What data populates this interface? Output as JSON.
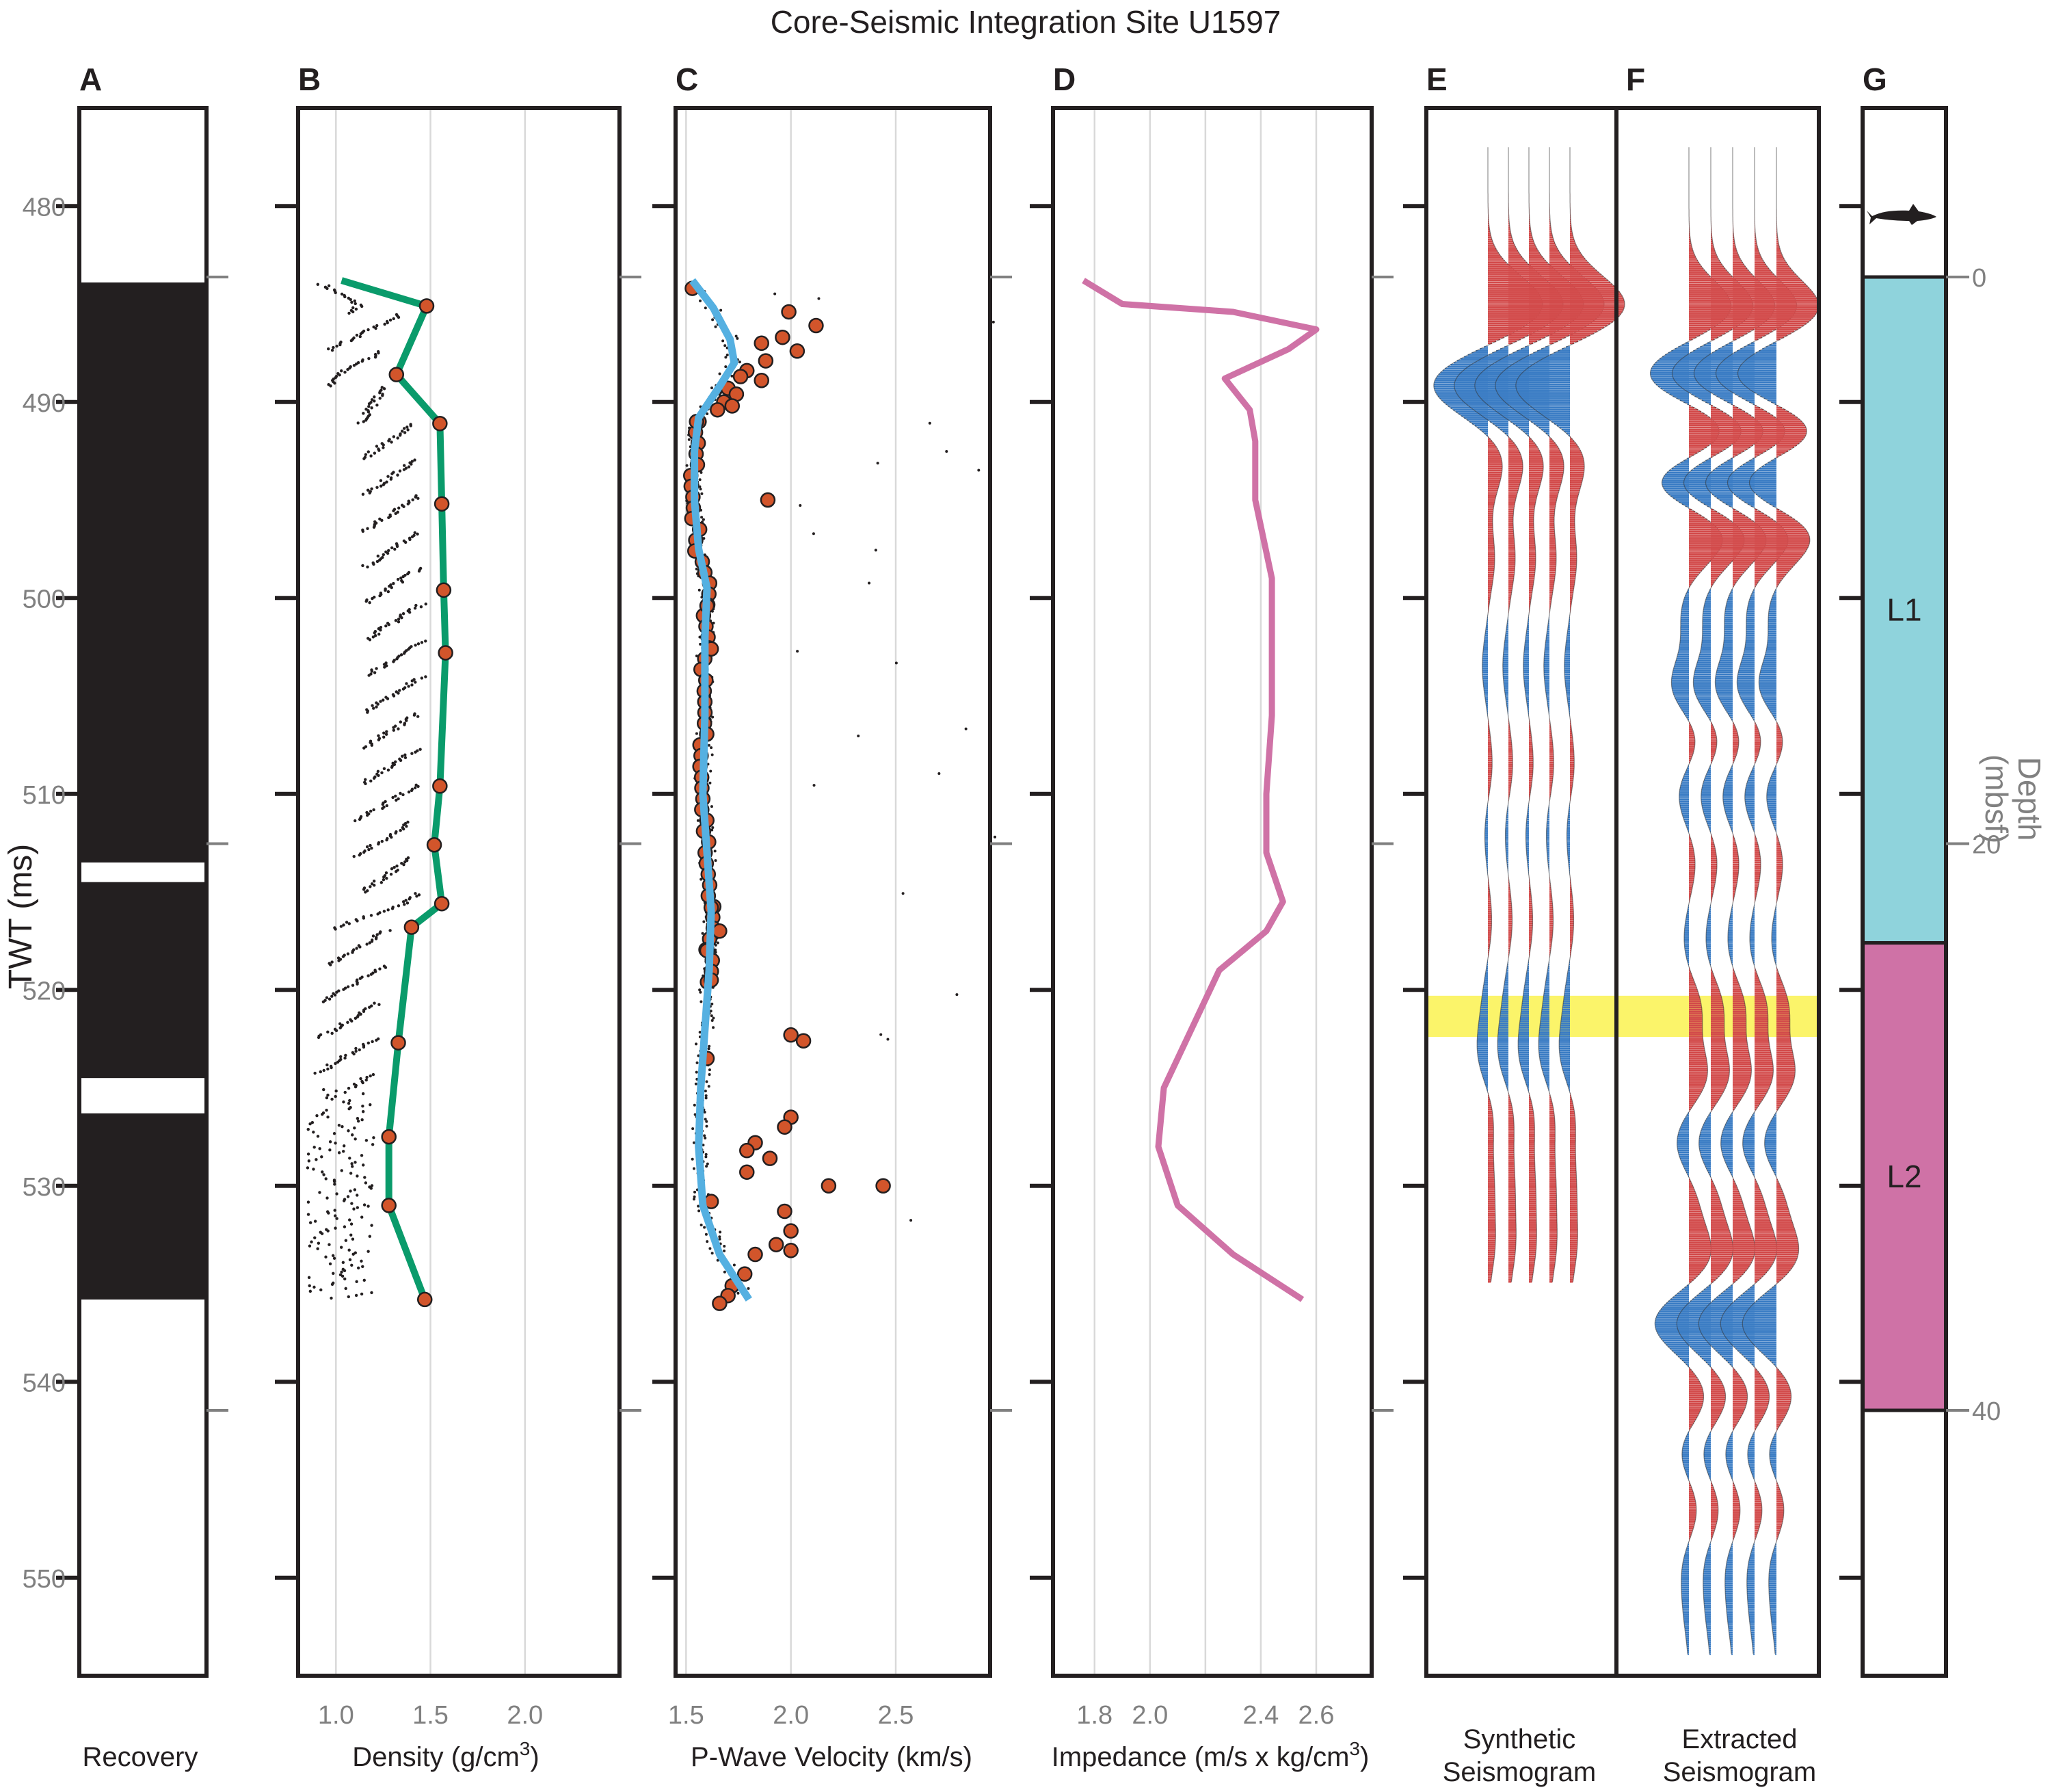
{
  "title": "Core-Seismic Integration Site U1597",
  "twt_axis": {
    "label": "TWT (ms)",
    "ticks": [
      "480",
      "490",
      "500",
      "510",
      "520",
      "530",
      "540",
      "550"
    ],
    "range": [
      475,
      555
    ]
  },
  "depth_axis": {
    "label_line1": "Depth",
    "label_line2": "(mbsf)",
    "ticks": [
      "0",
      "20",
      "40"
    ]
  },
  "panels": {
    "A": {
      "letter": "A",
      "xlabel": "Recovery"
    },
    "B": {
      "letter": "B",
      "xlabel": "Density (g/cm",
      "xlabel_sup": "3",
      "xlabel_end": ")",
      "ticks": [
        "1.0",
        "1.5",
        "2.0"
      ]
    },
    "C": {
      "letter": "C",
      "xlabel": "P-Wave Velocity (km/s)",
      "ticks": [
        "1.5",
        "2.0",
        "2.5"
      ]
    },
    "D": {
      "letter": "D",
      "xlabel": "Impedance (m/s x kg/cm",
      "xlabel_sup": "3",
      "xlabel_end": ")",
      "ticks": [
        "1.8",
        "2.0",
        "2.4",
        "2.6"
      ]
    },
    "E": {
      "letter": "E",
      "xlabel_line1": "Synthetic",
      "xlabel_line2": "Seismogram"
    },
    "F": {
      "letter": "F",
      "xlabel_line1": "Extracted",
      "xlabel_line2": "Seismogram"
    },
    "G": {
      "letter": "G",
      "units": [
        "L1",
        "L2"
      ]
    }
  },
  "colors": {
    "density_line": "#0a9b6b",
    "velocity_line": "#55b0e1",
    "impedance_line": "#cf72a6",
    "points": "#d2552b",
    "trace_pos": "#d24a4a",
    "trace_neg": "#3a7cc4",
    "highlight": "#fbf46a",
    "unit_L1": "#8fd3dc",
    "unit_L2": "#cf72a6",
    "core": "#231f20"
  },
  "chart_data": [
    {
      "type": "recovery",
      "title": "Recovery",
      "recovered_twt": [
        [
          483.9,
          513.5
        ],
        [
          514.5,
          524.5
        ],
        [
          526.3,
          535.8
        ]
      ]
    },
    {
      "type": "line",
      "title": "Density",
      "xlabel": "Density (g/cm3)",
      "xlim": [
        0.8,
        2.5
      ],
      "series": [
        {
          "points": [
            [
              1.03,
              483.8
            ],
            [
              1.48,
              485.1
            ],
            [
              1.32,
              488.6
            ],
            [
              1.55,
              491.1
            ],
            [
              1.56,
              495.2
            ],
            [
              1.57,
              499.6
            ],
            [
              1.58,
              502.8
            ],
            [
              1.55,
              509.6
            ],
            [
              1.52,
              512.6
            ],
            [
              1.56,
              515.6
            ],
            [
              1.4,
              516.8
            ],
            [
              1.33,
              522.7
            ],
            [
              1.28,
              527.5
            ],
            [
              1.28,
              531.0
            ],
            [
              1.47,
              535.8
            ]
          ]
        }
      ],
      "markers_x": [
        1.48,
        1.32,
        1.55,
        1.56,
        1.57,
        1.58,
        1.55,
        1.52,
        1.56,
        1.4,
        1.33,
        1.28,
        1.28,
        1.47
      ],
      "markers_twt": [
        485.1,
        488.6,
        491.1,
        495.2,
        499.6,
        502.8,
        509.6,
        512.6,
        515.6,
        516.8,
        522.7,
        527.5,
        531.0,
        535.8
      ]
    },
    {
      "type": "line",
      "title": "P-Wave Velocity",
      "xlabel": "P-Wave Velocity (km/s)",
      "xlim": [
        1.45,
        2.95
      ],
      "series": [
        {
          "points": [
            [
              1.53,
              483.8
            ],
            [
              1.63,
              485.2
            ],
            [
              1.71,
              486.8
            ],
            [
              1.73,
              488.0
            ],
            [
              1.66,
              489.2
            ],
            [
              1.56,
              490.8
            ],
            [
              1.54,
              492.5
            ],
            [
              1.54,
              495.0
            ],
            [
              1.56,
              497.5
            ],
            [
              1.6,
              499.5
            ],
            [
              1.59,
              502.0
            ],
            [
              1.59,
              506.0
            ],
            [
              1.58,
              510.0
            ],
            [
              1.6,
              513.0
            ],
            [
              1.62,
              516.0
            ],
            [
              1.61,
              519.0
            ],
            [
              1.59,
              522.0
            ],
            [
              1.57,
              525.0
            ],
            [
              1.56,
              528.0
            ],
            [
              1.58,
              531.0
            ],
            [
              1.66,
              533.5
            ],
            [
              1.8,
              535.8
            ]
          ]
        }
      ],
      "markers": [
        [
          1.53,
          484.2
        ],
        [
          1.99,
          485.4
        ],
        [
          2.12,
          486.1
        ],
        [
          1.96,
          486.7
        ],
        [
          2.03,
          487.4
        ],
        [
          1.86,
          487.0
        ],
        [
          1.88,
          487.9
        ],
        [
          1.79,
          488.4
        ],
        [
          1.76,
          488.7
        ],
        [
          1.7,
          489.3
        ],
        [
          1.74,
          489.6
        ],
        [
          1.86,
          488.9
        ],
        [
          1.68,
          490.0
        ],
        [
          1.72,
          490.2
        ],
        [
          1.65,
          490.4
        ],
        [
          1.55,
          491.0
        ],
        [
          1.89,
          495.0
        ],
        [
          1.6,
          500.4
        ],
        [
          1.62,
          502.6
        ],
        [
          1.62,
          515.8
        ],
        [
          1.66,
          517.0
        ],
        [
          1.6,
          518.0
        ],
        [
          1.62,
          519.5
        ],
        [
          2.0,
          522.3
        ],
        [
          2.06,
          522.6
        ],
        [
          1.6,
          523.5
        ],
        [
          2.0,
          526.5
        ],
        [
          1.97,
          527.0
        ],
        [
          1.83,
          527.8
        ],
        [
          1.79,
          528.2
        ],
        [
          1.9,
          528.6
        ],
        [
          1.79,
          529.3
        ],
        [
          2.18,
          530.0
        ],
        [
          2.44,
          530.0
        ],
        [
          1.62,
          530.8
        ],
        [
          1.97,
          531.3
        ],
        [
          2.0,
          532.3
        ],
        [
          1.93,
          533.0
        ],
        [
          1.83,
          533.5
        ],
        [
          2.0,
          533.3
        ],
        [
          1.78,
          534.5
        ],
        [
          1.72,
          535.1
        ],
        [
          1.7,
          535.6
        ],
        [
          1.66,
          536.0
        ]
      ]
    },
    {
      "type": "line",
      "title": "Impedance",
      "xlabel": "Impedance (m/s x kg/cm3)",
      "xlim": [
        1.65,
        2.8
      ],
      "series": [
        {
          "points": [
            [
              1.76,
              483.8
            ],
            [
              1.9,
              485.0
            ],
            [
              2.3,
              485.4
            ],
            [
              2.6,
              486.3
            ],
            [
              2.5,
              487.3
            ],
            [
              2.27,
              488.8
            ],
            [
              2.36,
              490.4
            ],
            [
              2.38,
              492.0
            ],
            [
              2.38,
              495.0
            ],
            [
              2.44,
              499.0
            ],
            [
              2.44,
              502.0
            ],
            [
              2.44,
              506.0
            ],
            [
              2.42,
              510.0
            ],
            [
              2.42,
              513.0
            ],
            [
              2.48,
              515.5
            ],
            [
              2.42,
              517.0
            ],
            [
              2.25,
              519.0
            ],
            [
              2.15,
              522.0
            ],
            [
              2.05,
              525.0
            ],
            [
              2.03,
              528.0
            ],
            [
              2.1,
              531.0
            ],
            [
              2.3,
              533.5
            ],
            [
              2.55,
              535.8
            ]
          ]
        }
      ]
    },
    {
      "type": "seismic-trace",
      "title": "Synthetic Seismogram",
      "twt_range": [
        475,
        535
      ],
      "wavelets": [
        [
          485.1,
          1.0
        ],
        [
          489.1,
          -1.0
        ],
        [
          493.0,
          0.28
        ],
        [
          498.0,
          0.12
        ],
        [
          503.5,
          -0.1
        ],
        [
          508.5,
          0.08
        ],
        [
          512.0,
          -0.06
        ],
        [
          516.5,
          0.07
        ],
        [
          520.5,
          -0.08
        ],
        [
          523.2,
          -0.18
        ],
        [
          526.5,
          0.1
        ],
        [
          530.0,
          0.1
        ],
        [
          533.0,
          0.12
        ]
      ]
    },
    {
      "type": "seismic-trace",
      "title": "Extracted Seismogram",
      "twt_range": [
        475,
        554
      ],
      "wavelets": [
        [
          485.2,
          1.0
        ],
        [
          488.6,
          -1.0
        ],
        [
          491.6,
          0.95
        ],
        [
          494.0,
          -0.9
        ],
        [
          496.8,
          0.85
        ],
        [
          500.8,
          -0.18
        ],
        [
          504.5,
          -0.42
        ],
        [
          507.2,
          0.22
        ],
        [
          510.0,
          -0.25
        ],
        [
          513.5,
          0.15
        ],
        [
          517.5,
          -0.12
        ],
        [
          521.0,
          0.28
        ],
        [
          524.3,
          0.42
        ],
        [
          527.8,
          -0.3
        ],
        [
          530.8,
          0.18
        ],
        [
          533.5,
          0.5
        ],
        [
          537.0,
          -0.8
        ],
        [
          540.8,
          0.38
        ],
        [
          543.5,
          -0.22
        ],
        [
          546.5,
          0.2
        ],
        [
          549.5,
          -0.15
        ],
        [
          551.8,
          -0.1
        ]
      ]
    }
  ],
  "stratigraphy": {
    "units": [
      {
        "name": "L1",
        "top_mbsf": 0,
        "base_mbsf": 23.5
      },
      {
        "name": "L2",
        "top_mbsf": 23.5,
        "base_mbsf": 40
      }
    ],
    "highlight_twt": [
      520.3,
      522.4
    ],
    "shark_icon": "shark-icon"
  }
}
